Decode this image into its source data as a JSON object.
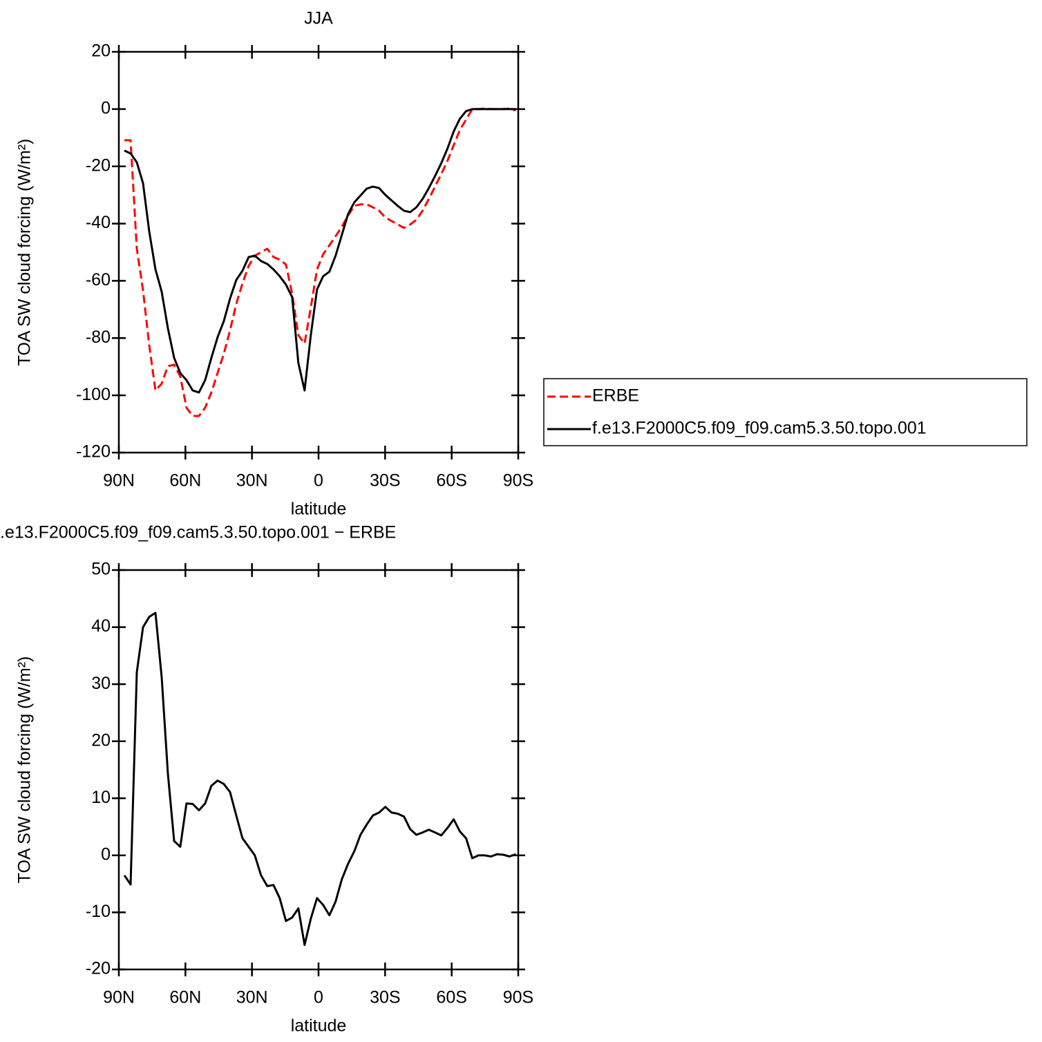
{
  "chart_data": [
    {
      "type": "line",
      "title": "JJA",
      "xlabel": "latitude",
      "ylabel": "TOA SW cloud forcing (W/m²)",
      "x": [
        87.5,
        84.7,
        81.9,
        79.1,
        76.3,
        73.5,
        70.7,
        67.9,
        65.1,
        62.3,
        59.5,
        56.7,
        53.9,
        51.1,
        48.3,
        45.5,
        42.7,
        39.9,
        37.1,
        34.3,
        31.5,
        28.7,
        25.9,
        23.1,
        20.3,
        17.5,
        14.7,
        11.9,
        9.1,
        6.3,
        3.5,
        0.7,
        -2.1,
        -4.9,
        -7.7,
        -10.5,
        -13.3,
        -16.1,
        -18.9,
        -21.7,
        -24.5,
        -27.3,
        -30.1,
        -32.9,
        -35.7,
        -38.5,
        -41.3,
        -44.1,
        -46.9,
        -49.7,
        -52.5,
        -55.3,
        -58.1,
        -60.9,
        -63.7,
        -66.5,
        -69.3,
        -72.1,
        -74.9,
        -77.7,
        -80.5,
        -83.3,
        -86.1,
        -88.9
      ],
      "series": [
        {
          "name": "ERBE",
          "color": "#ff0000",
          "dash": true,
          "values": [
            -10.9,
            -10.9,
            -48.8,
            -63.3,
            -82.6,
            -98.3,
            -95.9,
            -89.8,
            -89.3,
            -93.4,
            -104.3,
            -107.2,
            -107.2,
            -104.3,
            -99,
            -92.2,
            -85.5,
            -77.3,
            -68.1,
            -60.9,
            -54.8,
            -51.2,
            -50,
            -48.8,
            -51.7,
            -52.6,
            -54.3,
            -64.5,
            -79,
            -81.9,
            -69.3,
            -56,
            -50.7,
            -47.6,
            -44.4,
            -41.1,
            -37.2,
            -33.8,
            -33.3,
            -33.3,
            -34.3,
            -35.5,
            -37.9,
            -39.1,
            -40.3,
            -41.5,
            -40.3,
            -38.7,
            -35.5,
            -31.4,
            -27.1,
            -22.7,
            -18.1,
            -12.6,
            -7.3,
            -3.7,
            0,
            0,
            0.2,
            0,
            0,
            0,
            0.2,
            -0.5
          ]
        },
        {
          "name": "f.e13.F2000C5.f09_f09.cam5.3.50.topo.001",
          "color": "#000000",
          "dash": false,
          "values": [
            -14.5,
            -15.5,
            -18.6,
            -25.9,
            -42.8,
            -56,
            -63.8,
            -76.6,
            -86.9,
            -92.2,
            -94.7,
            -98.3,
            -99,
            -94.7,
            -86.9,
            -79.7,
            -74.1,
            -66.2,
            -59.7,
            -56.5,
            -51.7,
            -51.2,
            -53.1,
            -54.1,
            -56,
            -58.4,
            -61.3,
            -65.7,
            -88.7,
            -98.3,
            -79,
            -63,
            -58.4,
            -56.8,
            -51.2,
            -44,
            -36.7,
            -32.6,
            -30.2,
            -27.8,
            -27.1,
            -27.6,
            -30,
            -31.9,
            -33.8,
            -35.5,
            -36,
            -34.3,
            -31.4,
            -27.6,
            -23.4,
            -18.9,
            -13.8,
            -7.8,
            -3.4,
            -0.7,
            0,
            0,
            0,
            0,
            0,
            0,
            0,
            0
          ]
        }
      ],
      "xlim": [
        90,
        -90
      ],
      "xticks": [
        {
          "value": 90,
          "label": "90N"
        },
        {
          "value": 60,
          "label": "60N"
        },
        {
          "value": 30,
          "label": "30N"
        },
        0,
        {
          "value": -30,
          "label": "30S"
        },
        {
          "value": -60,
          "label": "60S"
        },
        {
          "value": -90,
          "label": "90S"
        }
      ],
      "ylim": [
        -120,
        20
      ],
      "yticks": [
        -120,
        -100,
        -80,
        -60,
        -40,
        -20,
        0,
        20
      ],
      "legend": "outside right"
    },
    {
      "type": "line",
      "title": ".e13.F2000C5.f09_f09.cam5.3.50.topo.001 − ERBE",
      "xlabel": "latitude",
      "ylabel": "TOA SW cloud forcing (W/m²)",
      "x": [
        87.5,
        84.7,
        81.9,
        79.1,
        76.3,
        73.5,
        70.7,
        67.9,
        65.1,
        62.3,
        59.5,
        56.7,
        53.9,
        51.1,
        48.3,
        45.5,
        42.7,
        39.9,
        37.1,
        34.3,
        31.5,
        28.7,
        25.9,
        23.1,
        20.3,
        17.5,
        14.7,
        11.9,
        9.1,
        6.3,
        3.5,
        0.7,
        -2.1,
        -4.9,
        -7.7,
        -10.5,
        -13.3,
        -16.1,
        -18.9,
        -21.7,
        -24.5,
        -27.3,
        -30.1,
        -32.9,
        -35.7,
        -38.5,
        -41.3,
        -44.1,
        -46.9,
        -49.7,
        -52.5,
        -55.3,
        -58.1,
        -60.9,
        -63.7,
        -66.5,
        -69.3,
        -72.1,
        -74.9,
        -77.7,
        -80.5,
        -83.3,
        -86.1,
        -88.9
      ],
      "values": [
        -3.5,
        -5.1,
        32.1,
        40,
        41.8,
        42.5,
        31.2,
        14.3,
        2.5,
        1.5,
        9.1,
        9,
        7.9,
        9.1,
        12.2,
        13.1,
        12.5,
        11.1,
        7,
        3,
        1.5,
        0,
        -3.5,
        -5.4,
        -5.2,
        -7.5,
        -11.5,
        -10.9,
        -9.3,
        -15.7,
        -11.1,
        -7.5,
        -8.7,
        -10.5,
        -8.1,
        -4.2,
        -1.5,
        0.7,
        3.6,
        5.4,
        7,
        7.5,
        8.5,
        7.5,
        7.3,
        6.8,
        4.6,
        3.6,
        4,
        4.5,
        4,
        3.5,
        4.8,
        6.3,
        4.2,
        3,
        -0.5,
        0,
        0,
        -0.2,
        0.2,
        0.1,
        -0.2,
        0.2
      ],
      "color": "#000000",
      "xlim": [
        90,
        -90
      ],
      "xticks": [
        {
          "value": 90,
          "label": "90N"
        },
        {
          "value": 60,
          "label": "60N"
        },
        {
          "value": 30,
          "label": "30N"
        },
        0,
        {
          "value": -30,
          "label": "30S"
        },
        {
          "value": -60,
          "label": "60S"
        },
        {
          "value": -90,
          "label": "90S"
        }
      ],
      "ylim": [
        -20,
        50
      ],
      "yticks": [
        -20,
        -10,
        0,
        10,
        20,
        30,
        40,
        50
      ]
    }
  ]
}
